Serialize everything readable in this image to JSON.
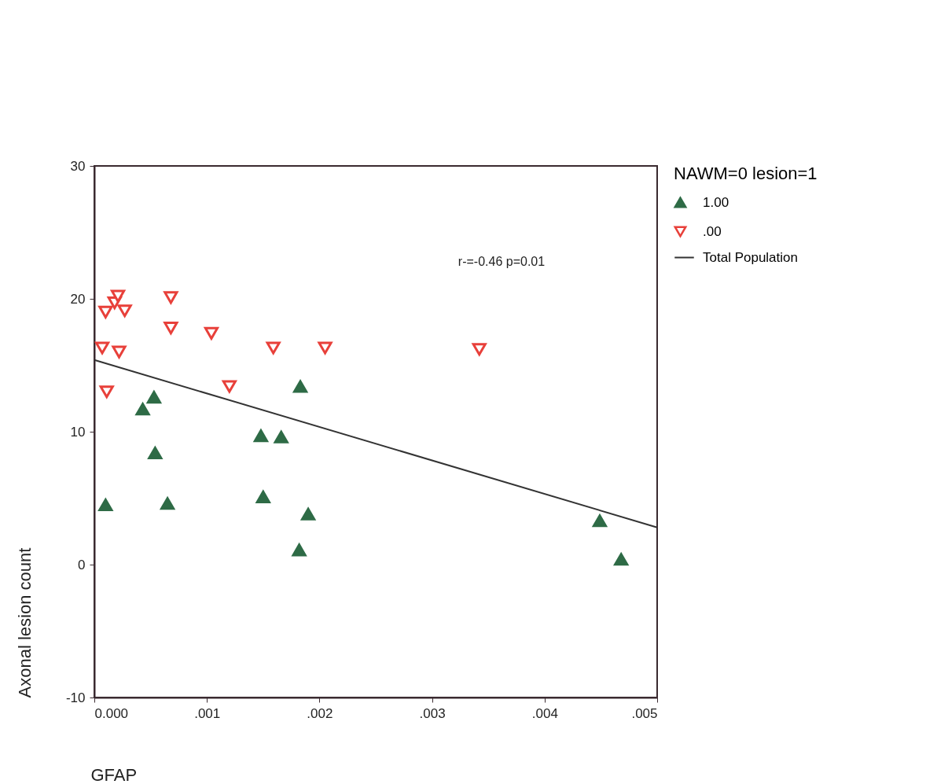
{
  "chart_data": {
    "type": "scatter",
    "xlabel": "GFAP",
    "ylabel": "Axonal lesion count",
    "legend_title": "NAWM=0 lesion=1",
    "annotations": [
      "r-=-0.46 p=0.01"
    ],
    "xlim": [
      0,
      0.005
    ],
    "ylim": [
      -10,
      30
    ],
    "xticks": [
      {
        "value": 0,
        "label": "0.000"
      },
      {
        "value": 0.001,
        "label": ".001"
      },
      {
        "value": 0.002,
        "label": ".002"
      },
      {
        "value": 0.003,
        "label": ".003"
      },
      {
        "value": 0.004,
        "label": ".004"
      },
      {
        "value": 0.005,
        "label": ".005"
      }
    ],
    "yticks": [
      -10,
      0,
      10,
      20,
      30
    ],
    "grid": false,
    "legend": "right",
    "series": [
      {
        "name": "1.00",
        "color": "#2e6b46",
        "marker": "triangle",
        "x": [
          0.0001,
          0.00043,
          0.00053,
          0.00054,
          0.00065,
          0.00148,
          0.00166,
          0.0015,
          0.00183,
          0.00182,
          0.0019,
          0.00449,
          0.00468
        ],
        "values": [
          4.5,
          11.7,
          12.6,
          8.4,
          4.6,
          9.7,
          9.6,
          5.1,
          13.4,
          1.1,
          3.8,
          3.3,
          0.4
        ]
      },
      {
        "name": ".00",
        "color": "#e8403a",
        "marker": "triangle",
        "x": [
          7e-05,
          0.00011,
          0.0001,
          0.00018,
          0.00021,
          0.00027,
          0.00022,
          0.00068,
          0.00068,
          0.00104,
          0.0012,
          0.00159,
          0.00205,
          0.00342
        ],
        "values": [
          16.3,
          13.0,
          19.0,
          19.7,
          20.2,
          19.1,
          16.0,
          20.1,
          17.8,
          17.4,
          13.4,
          16.3,
          16.3,
          16.2
        ]
      },
      {
        "name": "Total Population",
        "type": "line",
        "marker": "none",
        "color": "#333333",
        "x": [
          0,
          0.005
        ],
        "values": [
          15.4,
          2.8
        ]
      }
    ]
  }
}
